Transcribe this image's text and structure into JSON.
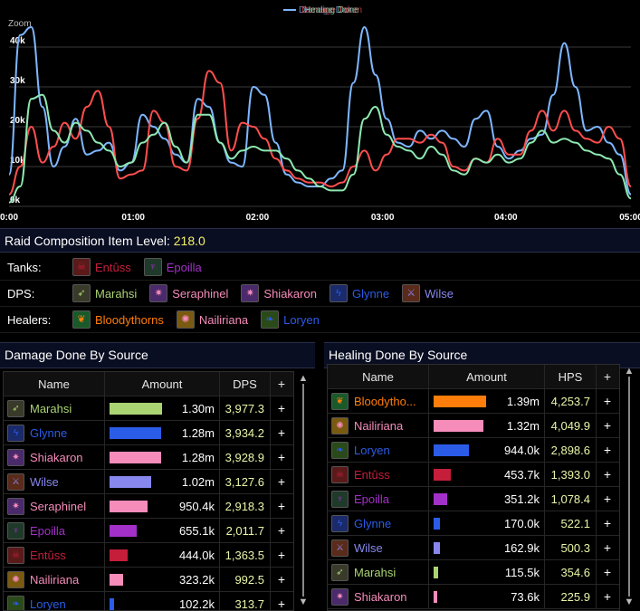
{
  "chart": {
    "zoom_label": "Zoom",
    "legend": [
      {
        "label": "Damage Done",
        "color": "#7eb6ff"
      },
      {
        "label": "Damage Taken",
        "color": "#ff4e4e"
      },
      {
        "label": "Healing Done",
        "color": "#8de8b0"
      }
    ],
    "y_ticks": [
      "40k",
      "30k",
      "20k",
      "10k",
      "0k"
    ],
    "x_ticks": [
      "0:00",
      "01:00",
      "02:00",
      "03:00",
      "04:00",
      "05:00"
    ]
  },
  "chart_data": {
    "type": "line",
    "ylim": [
      0,
      45000
    ],
    "xlim": [
      0,
      336
    ],
    "xlabel": "",
    "ylabel": "",
    "series": [
      {
        "name": "Damage Done",
        "color": "#7eb6ff",
        "x": [
          0,
          6,
          12,
          18,
          24,
          30,
          36,
          42,
          48,
          54,
          60,
          66,
          72,
          78,
          84,
          90,
          96,
          102,
          108,
          114,
          120,
          126,
          132,
          138,
          144,
          150,
          156,
          162,
          168,
          174,
          180,
          186,
          192,
          198,
          204,
          210,
          216,
          222,
          228,
          234,
          240,
          246,
          252,
          258,
          264,
          270,
          276,
          282,
          288,
          294,
          300,
          306,
          312,
          318,
          324,
          330,
          336
        ],
        "y": [
          8000,
          43000,
          45000,
          25000,
          10000,
          15000,
          22000,
          13000,
          14000,
          16000,
          9000,
          11000,
          23000,
          20000,
          17000,
          13000,
          11000,
          27000,
          25000,
          16000,
          11000,
          10000,
          30000,
          28000,
          16000,
          8000,
          6000,
          5000,
          5000,
          7000,
          9000,
          31000,
          45000,
          33000,
          22000,
          16000,
          15000,
          19000,
          17000,
          19000,
          17000,
          15000,
          22000,
          24000,
          15000,
          12000,
          14000,
          17000,
          18000,
          28000,
          41000,
          30000,
          19000,
          20000,
          16000,
          13000,
          3000
        ]
      },
      {
        "name": "Damage Taken",
        "color": "#ff4e4e",
        "x": [
          0,
          6,
          12,
          18,
          24,
          30,
          36,
          42,
          48,
          54,
          60,
          66,
          72,
          78,
          84,
          90,
          96,
          102,
          108,
          114,
          120,
          126,
          132,
          138,
          144,
          150,
          156,
          162,
          168,
          174,
          180,
          186,
          192,
          198,
          204,
          210,
          216,
          222,
          228,
          234,
          240,
          246,
          252,
          258,
          264,
          270,
          276,
          282,
          288,
          294,
          300,
          306,
          312,
          318,
          324,
          330,
          336
        ],
        "y": [
          3000,
          10000,
          20000,
          11000,
          15000,
          21000,
          17000,
          25000,
          29000,
          20000,
          7000,
          8000,
          9000,
          24000,
          21000,
          10000,
          9000,
          22000,
          34000,
          31000,
          14000,
          21000,
          20000,
          17000,
          12000,
          9000,
          7000,
          6000,
          6000,
          5000,
          6000,
          10000,
          14000,
          9000,
          13000,
          17000,
          17000,
          16000,
          18000,
          16000,
          10000,
          9000,
          12000,
          11000,
          17000,
          13000,
          13000,
          19000,
          24000,
          19000,
          24000,
          19000,
          17000,
          16000,
          20000,
          17000,
          5000
        ]
      },
      {
        "name": "Healing Done",
        "color": "#8de8b0",
        "x": [
          0,
          6,
          12,
          18,
          24,
          30,
          36,
          42,
          48,
          54,
          60,
          66,
          72,
          78,
          84,
          90,
          96,
          102,
          108,
          114,
          120,
          126,
          132,
          138,
          144,
          150,
          156,
          162,
          168,
          174,
          180,
          186,
          192,
          198,
          204,
          210,
          216,
          222,
          228,
          234,
          240,
          246,
          252,
          258,
          264,
          270,
          276,
          282,
          288,
          294,
          300,
          306,
          312,
          318,
          324,
          330,
          336
        ],
        "y": [
          1000,
          5000,
          27000,
          28000,
          19000,
          16000,
          21000,
          19000,
          16000,
          14000,
          10000,
          11000,
          16000,
          18000,
          21000,
          15000,
          11000,
          23000,
          23000,
          16000,
          12000,
          14000,
          15000,
          14000,
          14000,
          12000,
          9000,
          7000,
          5000,
          4000,
          4000,
          8000,
          22000,
          25000,
          18000,
          15000,
          14000,
          12000,
          15000,
          13000,
          9000,
          8000,
          12000,
          11000,
          13000,
          11000,
          12000,
          16000,
          19000,
          16000,
          17000,
          16000,
          14000,
          13000,
          12000,
          8000,
          2000
        ]
      }
    ]
  },
  "composition": {
    "title": "Raid Composition Item Level: ",
    "ilvl": "218.0",
    "roles": [
      {
        "label": "Tanks:",
        "members": [
          {
            "name": "Entûss",
            "color": "#c41e3a",
            "icon": "skull-icon",
            "glyph": "☠",
            "icon_bg": "#5a1a1a"
          },
          {
            "name": "Epoilla",
            "color": "#a330c9",
            "icon": "demon-icon",
            "glyph": "♆",
            "icon_bg": "#1f3a2a"
          }
        ]
      },
      {
        "label": "DPS:",
        "members": [
          {
            "name": "Marahsi",
            "color": "#abd473",
            "icon": "hunter-icon",
            "glyph": "➶",
            "icon_bg": "#3a3a2a"
          },
          {
            "name": "Seraphinel",
            "color": "#f58cba",
            "icon": "arcane-icon",
            "glyph": "✷",
            "icon_bg": "#4a2a6a"
          },
          {
            "name": "Shiakaron",
            "color": "#f58cba",
            "icon": "arcane-icon",
            "glyph": "✷",
            "icon_bg": "#4a2a6a"
          },
          {
            "name": "Glynne",
            "color": "#2b5ce8",
            "icon": "lightning-icon",
            "glyph": "ϟ",
            "icon_bg": "#1a2a6a"
          },
          {
            "name": "Wilse",
            "color": "#8787ed",
            "icon": "slash-icon",
            "glyph": "⚔",
            "icon_bg": "#5a2a1a"
          }
        ]
      },
      {
        "label": "Healers:",
        "members": [
          {
            "name": "Bloodythorns",
            "color": "#ff7d0a",
            "icon": "leaf-icon",
            "glyph": "❦",
            "icon_bg": "#1a5a2a"
          },
          {
            "name": "Nailiriana",
            "color": "#f58cba",
            "icon": "holy-light-icon",
            "glyph": "✺",
            "icon_bg": "#7a5a10"
          },
          {
            "name": "Loryen",
            "color": "#2b5ce8",
            "icon": "nature-icon",
            "glyph": "❧",
            "icon_bg": "#2a4a1a"
          }
        ]
      }
    ]
  },
  "damage": {
    "title": "Damage Done By Source",
    "headers": {
      "name": "Name",
      "amount": "Amount",
      "rate": "DPS",
      "add": "+"
    },
    "rows": [
      {
        "name": "Marahsi",
        "amount": "1.30m",
        "rate": "3,977.3",
        "share": 1.0,
        "color": "#abd473",
        "icon": "hunter-icon",
        "glyph": "➶",
        "icon_bg": "#3a3a2a"
      },
      {
        "name": "Glynne",
        "amount": "1.28m",
        "rate": "3,934.2",
        "share": 0.99,
        "color": "#2b5ce8",
        "icon": "lightning-icon",
        "glyph": "ϟ",
        "icon_bg": "#1a2a6a"
      },
      {
        "name": "Shiakaron",
        "amount": "1.28m",
        "rate": "3,928.9",
        "share": 0.99,
        "color": "#f58cba",
        "icon": "arcane-icon",
        "glyph": "✷",
        "icon_bg": "#4a2a6a"
      },
      {
        "name": "Wilse",
        "amount": "1.02m",
        "rate": "3,127.6",
        "share": 0.79,
        "color": "#8787ed",
        "icon": "slash-icon",
        "glyph": "⚔",
        "icon_bg": "#5a2a1a"
      },
      {
        "name": "Seraphinel",
        "amount": "950.4k",
        "rate": "2,918.3",
        "share": 0.73,
        "color": "#f58cba",
        "icon": "arcane-icon",
        "glyph": "✷",
        "icon_bg": "#4a2a6a"
      },
      {
        "name": "Epoilla",
        "amount": "655.1k",
        "rate": "2,011.7",
        "share": 0.51,
        "color": "#a330c9",
        "icon": "demon-icon",
        "glyph": "♆",
        "icon_bg": "#1f3a2a"
      },
      {
        "name": "Entûss",
        "amount": "444.0k",
        "rate": "1,363.5",
        "share": 0.34,
        "color": "#c41e3a",
        "icon": "skull-icon",
        "glyph": "☠",
        "icon_bg": "#5a1a1a"
      },
      {
        "name": "Nailiriana",
        "amount": "323.2k",
        "rate": "992.5",
        "share": 0.25,
        "color": "#f58cba",
        "icon": "holy-light-icon",
        "glyph": "✺",
        "icon_bg": "#7a5a10"
      },
      {
        "name": "Loryen",
        "amount": "102.2k",
        "rate": "313.7",
        "share": 0.08,
        "color": "#2b5ce8",
        "icon": "nature-icon",
        "glyph": "❧",
        "icon_bg": "#2a4a1a"
      }
    ]
  },
  "healing": {
    "title": "Healing Done By Source",
    "headers": {
      "name": "Name",
      "amount": "Amount",
      "rate": "HPS",
      "add": "+"
    },
    "rows": [
      {
        "name": "Bloodytho...",
        "amount": "1.39m",
        "rate": "4,253.7",
        "share": 1.0,
        "color": "#ff7d0a",
        "icon": "leaf-icon",
        "glyph": "❦",
        "icon_bg": "#1a5a2a"
      },
      {
        "name": "Nailiriana",
        "amount": "1.32m",
        "rate": "4,049.9",
        "share": 0.95,
        "color": "#f58cba",
        "icon": "holy-light-icon",
        "glyph": "✺",
        "icon_bg": "#7a5a10"
      },
      {
        "name": "Loryen",
        "amount": "944.0k",
        "rate": "2,898.6",
        "share": 0.68,
        "color": "#2b5ce8",
        "icon": "nature-icon",
        "glyph": "❧",
        "icon_bg": "#2a4a1a"
      },
      {
        "name": "Entûss",
        "amount": "453.7k",
        "rate": "1,393.0",
        "share": 0.33,
        "color": "#c41e3a",
        "icon": "skull-icon",
        "glyph": "☠",
        "icon_bg": "#5a1a1a"
      },
      {
        "name": "Epoilla",
        "amount": "351.2k",
        "rate": "1,078.4",
        "share": 0.25,
        "color": "#a330c9",
        "icon": "demon-icon",
        "glyph": "♆",
        "icon_bg": "#1f3a2a"
      },
      {
        "name": "Glynne",
        "amount": "170.0k",
        "rate": "522.1",
        "share": 0.12,
        "color": "#2b5ce8",
        "icon": "lightning-icon",
        "glyph": "ϟ",
        "icon_bg": "#1a2a6a"
      },
      {
        "name": "Wilse",
        "amount": "162.9k",
        "rate": "500.3",
        "share": 0.12,
        "color": "#8787ed",
        "icon": "slash-icon",
        "glyph": "⚔",
        "icon_bg": "#5a2a1a"
      },
      {
        "name": "Marahsi",
        "amount": "115.5k",
        "rate": "354.6",
        "share": 0.08,
        "color": "#abd473",
        "icon": "hunter-icon",
        "glyph": "➶",
        "icon_bg": "#3a3a2a"
      },
      {
        "name": "Shiakaron",
        "amount": "73.6k",
        "rate": "225.9",
        "share": 0.05,
        "color": "#f58cba",
        "icon": "arcane-icon",
        "glyph": "✷",
        "icon_bg": "#4a2a6a"
      }
    ]
  }
}
